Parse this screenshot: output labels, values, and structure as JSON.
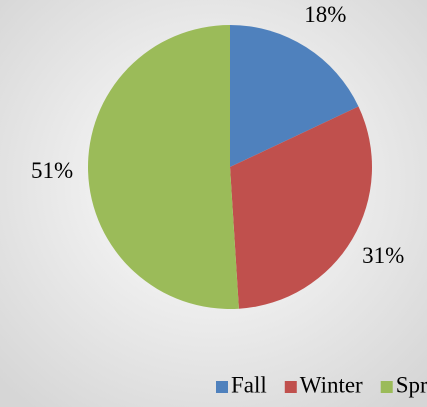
{
  "chart_data": {
    "type": "pie",
    "categories": [
      "Fall",
      "Winter",
      "Spring"
    ],
    "values": [
      18,
      31,
      51
    ],
    "value_labels": [
      "18%",
      "31%",
      "51%"
    ],
    "colors": [
      "#4f81bd",
      "#c0504d",
      "#9bbb59"
    ],
    "legend": "bottom"
  }
}
